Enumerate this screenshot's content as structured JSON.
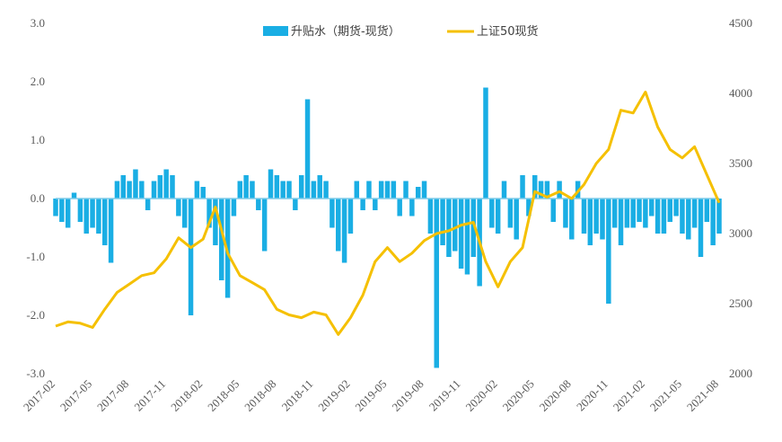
{
  "chart_data": {
    "type": "bar+line",
    "title": "",
    "legend": {
      "position": "top-center",
      "entries": [
        {
          "name": "升贴水（期货-现货）",
          "type": "bar"
        },
        {
          "name": "上证50现货",
          "type": "line"
        }
      ]
    },
    "colors": {
      "bar": "#1aaee4",
      "line": "#f5c000"
    },
    "x_tick_labels": [
      "2017-02",
      "2017-05",
      "2017-08",
      "2017-11",
      "2018-02",
      "2018-05",
      "2018-08",
      "2018-11",
      "2019-02",
      "2019-05",
      "2019-08",
      "2019-11",
      "2020-02",
      "2020-05",
      "2020-08",
      "2020-11",
      "2021-02",
      "2021-05",
      "2021-08"
    ],
    "y_left": {
      "ylim": [
        -3.0,
        3.0
      ],
      "ticks": [
        "3.0",
        "2.0",
        "1.0",
        "0.0",
        "-1.0",
        "-2.0",
        "-3.0"
      ]
    },
    "y_right": {
      "ylim": [
        2000,
        4500
      ],
      "ticks": [
        "4500",
        "4000",
        "3500",
        "3000",
        "2500",
        "2000"
      ]
    },
    "grid": false,
    "series": [
      {
        "name": "升贴水（期货-现货）",
        "axis": "left",
        "x_month_index": [
          0,
          0.5,
          1,
          1.5,
          2,
          2.5,
          3,
          3.5,
          4,
          4.5,
          5,
          5.5,
          6,
          6.5,
          7,
          7.5,
          8,
          8.5,
          9,
          9.5,
          10,
          10.5,
          11,
          11.5,
          12,
          12.5,
          13,
          13.5,
          14,
          14.5,
          15,
          15.5,
          16,
          16.5,
          17,
          17.5,
          18,
          18.5,
          19,
          19.5,
          20,
          20.5,
          21,
          21.5,
          22,
          22.5,
          23,
          23.5,
          24,
          24.5,
          25,
          25.5,
          26,
          26.5,
          27,
          27.5,
          28,
          28.5,
          29,
          29.5,
          30,
          30.5,
          31,
          31.5,
          32,
          32.5,
          33,
          33.5,
          34,
          34.5,
          35,
          35.5,
          36,
          36.5,
          37,
          37.5,
          38,
          38.5,
          39,
          39.5,
          40,
          40.5,
          41,
          41.5,
          42,
          42.5,
          43,
          43.5,
          44,
          44.5,
          45,
          45.5,
          46,
          46.5,
          47,
          47.5,
          48,
          48.5,
          49,
          49.5,
          50,
          50.5,
          51,
          51.5,
          52,
          52.5,
          53,
          53.5,
          54
        ],
        "values": [
          -0.3,
          -0.4,
          -0.5,
          0.1,
          -0.4,
          -0.6,
          -0.5,
          -0.6,
          -0.8,
          -1.1,
          0.3,
          0.4,
          0.3,
          0.5,
          0.3,
          -0.2,
          0.3,
          0.4,
          0.5,
          0.4,
          -0.3,
          -0.5,
          -2.0,
          0.3,
          0.2,
          -0.5,
          -0.8,
          -1.4,
          -1.7,
          -0.3,
          0.3,
          0.4,
          0.3,
          -0.2,
          -0.9,
          0.5,
          0.4,
          0.3,
          0.3,
          -0.2,
          0.4,
          1.7,
          0.3,
          0.4,
          0.3,
          -0.5,
          -0.9,
          -1.1,
          -0.6,
          0.3,
          -0.2,
          0.3,
          -0.2,
          0.3,
          0.3,
          0.3,
          -0.3,
          0.3,
          -0.3,
          0.2,
          0.3,
          -0.6,
          -2.9,
          -0.8,
          -1.0,
          -0.9,
          -1.2,
          -1.3,
          -1.0,
          -1.5,
          1.9,
          -0.5,
          -0.6,
          0.3,
          -0.5,
          -0.7,
          0.4,
          -0.3,
          0.4,
          0.3,
          0.3,
          -0.4,
          0.3,
          -0.5,
          -0.7,
          0.3,
          -0.6,
          -0.8,
          -0.6,
          -0.7,
          -1.8,
          -0.5,
          -0.8,
          -0.5,
          -0.5,
          -0.4,
          -0.5,
          -0.3,
          -0.6,
          -0.6,
          -0.4,
          -0.3,
          -0.6,
          -0.7,
          -0.5,
          -1.0,
          -0.4,
          -0.8,
          -0.6
        ]
      },
      {
        "name": "上证50现货",
        "axis": "right",
        "x_month_index": [
          0,
          1,
          2,
          3,
          4,
          5,
          6,
          7,
          8,
          9,
          10,
          11,
          12,
          13,
          14,
          15,
          16,
          17,
          18,
          19,
          20,
          21,
          22,
          23,
          24,
          25,
          26,
          27,
          28,
          29,
          30,
          31,
          32,
          33,
          34,
          35,
          36,
          37,
          38,
          39,
          40,
          41,
          42,
          43,
          44,
          45,
          46,
          47,
          48,
          49,
          50,
          51,
          52,
          53,
          54
        ],
        "values": [
          2340,
          2370,
          2360,
          2330,
          2460,
          2580,
          2640,
          2700,
          2720,
          2820,
          2970,
          2900,
          2960,
          3190,
          2860,
          2700,
          2650,
          2600,
          2460,
          2420,
          2400,
          2440,
          2420,
          2280,
          2400,
          2560,
          2800,
          2900,
          2800,
          2860,
          2950,
          3000,
          3020,
          3060,
          3080,
          2800,
          2620,
          2800,
          2900,
          3300,
          3260,
          3300,
          3250,
          3350,
          3500,
          3600,
          3880,
          3860,
          4010,
          3760,
          3600,
          3540,
          3620,
          3420,
          3220
        ]
      }
    ]
  }
}
